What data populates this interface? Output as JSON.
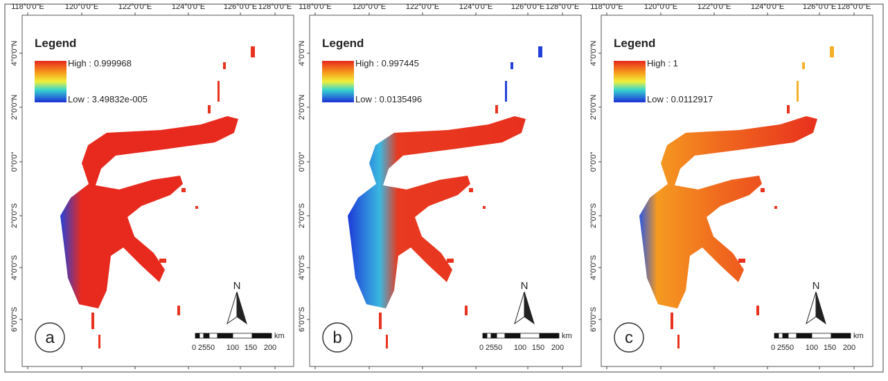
{
  "panels": [
    {
      "label": "a",
      "legend": {
        "title": "Legend",
        "high": "High : 0.999968",
        "low": "Low : 3.49832e-005"
      }
    },
    {
      "label": "b",
      "legend": {
        "title": "Legend",
        "high": "High : 0.997445",
        "low": "Low : 0.0135496"
      }
    },
    {
      "label": "c",
      "legend": {
        "title": "Legend",
        "high": "High : 1",
        "low": "Low : 0.0112917"
      }
    }
  ],
  "x_ticks": [
    "118°0'0\"E",
    "120°0'0\"E",
    "122°0'0\"E",
    "124°0'0\"E",
    "126°0'0\"E",
    "128°0'0\"E"
  ],
  "y_ticks": [
    "4°0'0\"N",
    "2°0'0\"N",
    "0°0'0\"",
    "2°0'0\"S",
    "4°0'0\"S",
    "6°0'0\"S"
  ],
  "north": "N",
  "scale_bar": {
    "labels": [
      "0",
      "25",
      "50",
      "100",
      "150",
      "200"
    ],
    "unit": "km"
  }
}
